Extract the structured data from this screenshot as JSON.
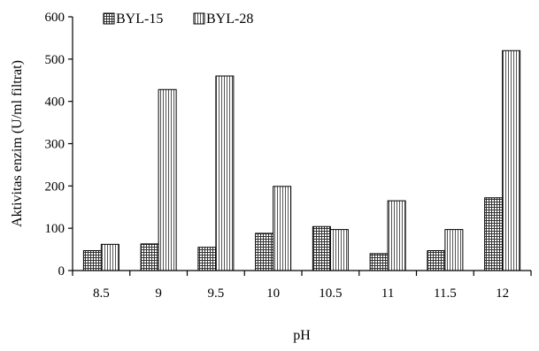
{
  "chart_data": {
    "type": "bar",
    "categories": [
      "8.5",
      "9",
      "9.5",
      "10",
      "10.5",
      "11",
      "11.5",
      "12"
    ],
    "series": [
      {
        "name": "BYL-15",
        "values": [
          47,
          63,
          55,
          88,
          104,
          40,
          47,
          172
        ],
        "pattern": "grid"
      },
      {
        "name": "BYL-28",
        "values": [
          62,
          428,
          460,
          199,
          97,
          165,
          97,
          520
        ],
        "pattern": "vertical-lines"
      }
    ],
    "xlabel": "pH",
    "ylabel": "Aktivitas enzim (U/ml filtrat)",
    "ylim": [
      0,
      600
    ],
    "yticks": [
      "0",
      "100",
      "200",
      "300",
      "400",
      "500",
      "600"
    ],
    "grid": false,
    "legend": "top-left"
  }
}
